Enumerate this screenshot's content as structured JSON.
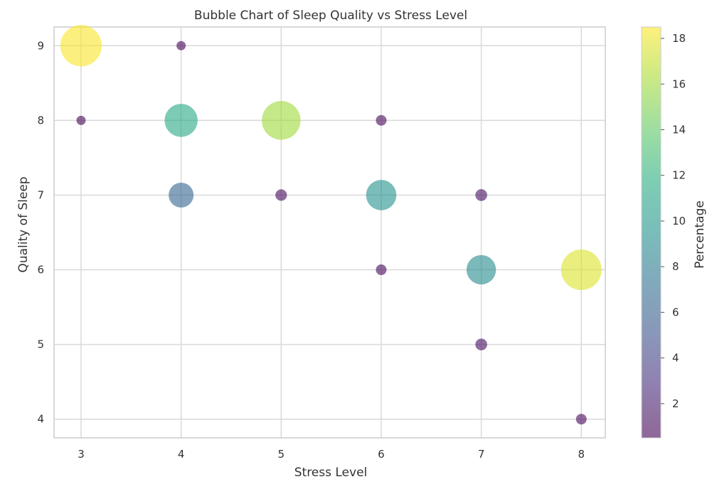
{
  "chart_data": {
    "type": "scatter",
    "subtype": "bubble",
    "title": "Bubble Chart of Sleep Quality vs Stress Level",
    "xlabel": "Stress Level",
    "ylabel": "Quality of Sleep",
    "xticks": [
      3,
      4,
      5,
      6,
      7,
      8
    ],
    "yticks": [
      4,
      5,
      6,
      7,
      8,
      9
    ],
    "xlim": [
      2.73,
      8.24
    ],
    "ylim": [
      3.75,
      9.25
    ],
    "grid": true,
    "colorbar": {
      "label": "Percentage",
      "colormap": "viridis",
      "range": [
        0.5,
        18.5
      ],
      "ticks": [
        2,
        4,
        6,
        8,
        10,
        12,
        14,
        16,
        18
      ]
    },
    "points": [
      {
        "x": 3,
        "y": 9,
        "value": 18.4
      },
      {
        "x": 3,
        "y": 8,
        "value": 0.5
      },
      {
        "x": 4,
        "y": 9,
        "value": 0.5
      },
      {
        "x": 4,
        "y": 8,
        "value": 11.5
      },
      {
        "x": 4,
        "y": 7,
        "value": 6.4
      },
      {
        "x": 5,
        "y": 8,
        "value": 16.0
      },
      {
        "x": 5,
        "y": 7,
        "value": 1.0
      },
      {
        "x": 6,
        "y": 8,
        "value": 0.8
      },
      {
        "x": 6,
        "y": 7,
        "value": 9.6
      },
      {
        "x": 6,
        "y": 6,
        "value": 0.8
      },
      {
        "x": 7,
        "y": 7,
        "value": 1.1
      },
      {
        "x": 7,
        "y": 6,
        "value": 9.1
      },
      {
        "x": 7,
        "y": 5,
        "value": 1.1
      },
      {
        "x": 8,
        "y": 6,
        "value": 17.6
      },
      {
        "x": 8,
        "y": 4,
        "value": 0.8
      }
    ]
  }
}
